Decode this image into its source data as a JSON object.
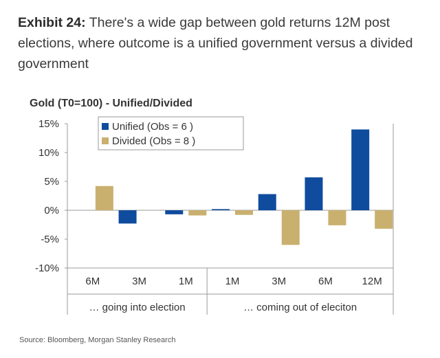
{
  "exhibit": {
    "label": "Exhibit 24:",
    "text": "There's a wide gap between gold returns 12M post elections, where outcome is a unified government versus a divided government"
  },
  "source": "Source: Bloomberg, Morgan Stanley Research",
  "colors": {
    "unified": "#0f4c9e",
    "divided": "#c9b06e",
    "axis": "#9a9a9a",
    "text": "#333333"
  },
  "chart_data": {
    "type": "bar",
    "title": "Gold (T0=100) - Unified/Divided",
    "categories": [
      "6M",
      "3M",
      "1M",
      "1M",
      "3M",
      "6M",
      "12M"
    ],
    "groups": [
      {
        "label": "… going into election",
        "span": 3
      },
      {
        "label": "… coming out of eleciton",
        "span": 4
      }
    ],
    "series": [
      {
        "name": "Unified (Obs = 6 )",
        "values": [
          0,
          -2.3,
          -0.7,
          0.2,
          2.8,
          5.7,
          14.0
        ]
      },
      {
        "name": "Divided (Obs = 8 )",
        "values": [
          4.2,
          0,
          -0.9,
          -0.8,
          -6.0,
          -2.6,
          -3.2
        ]
      }
    ],
    "yticks": [
      15,
      10,
      5,
      0,
      -5,
      -10
    ],
    "ytick_labels": [
      "15%",
      "10%",
      "5%",
      "0%",
      "-5%",
      "-10%"
    ],
    "ylim": [
      -10,
      15
    ],
    "legend_position": "top-left",
    "xlabel": "",
    "ylabel": ""
  }
}
